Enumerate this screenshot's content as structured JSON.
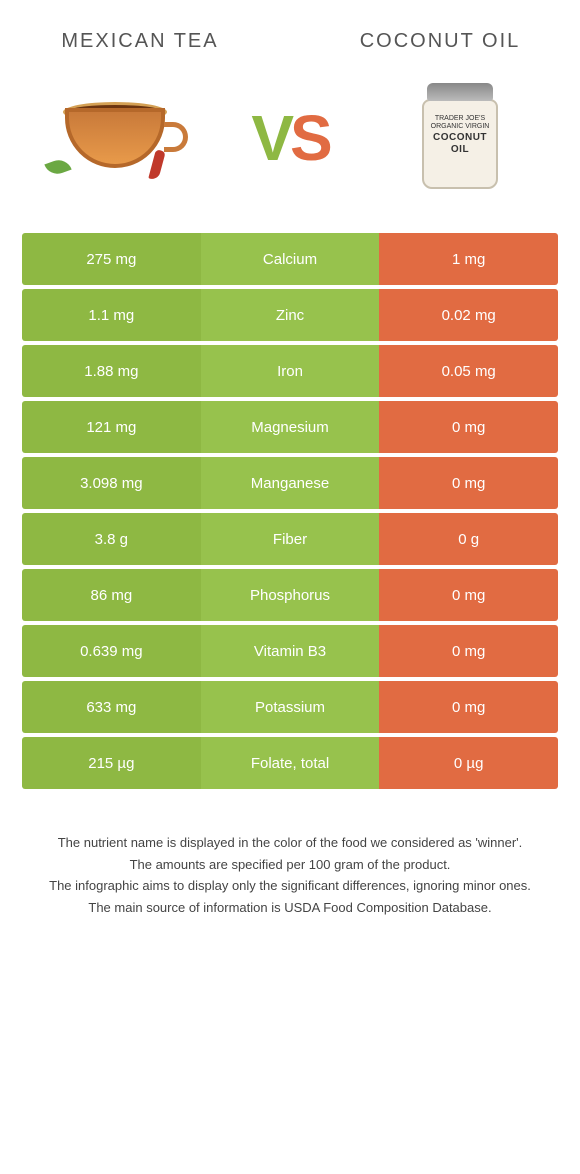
{
  "header": {
    "left_title": "Mexican tea",
    "right_title": "Coconut oil",
    "vs_v": "V",
    "vs_s": "S"
  },
  "jar_label": {
    "line1": "TRADER JOE'S",
    "line2": "ORGANIC VIRGIN",
    "big1": "COCONUT",
    "big2": "OIL"
  },
  "colors": {
    "left": "#8eb843",
    "mid": "#97c24d",
    "right": "#e16b42",
    "mid_winner_right": "#e78a56",
    "mid_text_left": "#ffffff"
  },
  "rows": [
    {
      "left": "275 mg",
      "label": "Calcium",
      "right": "1 mg",
      "winner": "left"
    },
    {
      "left": "1.1 mg",
      "label": "Zinc",
      "right": "0.02 mg",
      "winner": "left"
    },
    {
      "left": "1.88 mg",
      "label": "Iron",
      "right": "0.05 mg",
      "winner": "left"
    },
    {
      "left": "121 mg",
      "label": "Magnesium",
      "right": "0 mg",
      "winner": "left"
    },
    {
      "left": "3.098 mg",
      "label": "Manganese",
      "right": "0 mg",
      "winner": "left"
    },
    {
      "left": "3.8 g",
      "label": "Fiber",
      "right": "0 g",
      "winner": "left"
    },
    {
      "left": "86 mg",
      "label": "Phosphorus",
      "right": "0 mg",
      "winner": "left"
    },
    {
      "left": "0.639 mg",
      "label": "Vitamin B3",
      "right": "0 mg",
      "winner": "left"
    },
    {
      "left": "633 mg",
      "label": "Potassium",
      "right": "0 mg",
      "winner": "left"
    },
    {
      "left": "215 µg",
      "label": "Folate, total",
      "right": "0 µg",
      "winner": "left"
    }
  ],
  "footnotes": [
    "The nutrient name is displayed in the color of the food we considered as 'winner'.",
    "The amounts are specified per 100 gram of the product.",
    "The infographic aims to display only the significant differences, ignoring minor ones.",
    "The main source of information is USDA Food Composition Database."
  ]
}
